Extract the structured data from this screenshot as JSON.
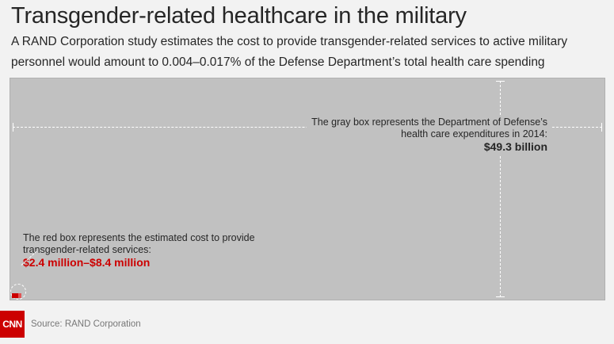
{
  "header": {
    "title": "Transgender-related healthcare in the military",
    "subtitle": "A RAND Corporation study estimates the cost to provide transgender-related services to active military personnel would amount to 0.004–0.017% of the Defense Department’s total health care spending"
  },
  "chart_data": {
    "type": "area-comparison",
    "title": "Transgender-related healthcare in the military",
    "boxes": [
      {
        "label": "The gray box represents the Department of Defense’s health care expenditures in 2014:",
        "value_text": "$49.3 billion",
        "value": 49300000000,
        "color": "#c1c1c1"
      },
      {
        "label": "The red box represents the estimated cost to provide transgender-related services:",
        "value_text_low": "$2.4 million",
        "value_text_sep": "–",
        "value_text_high": "$8.4 million",
        "value_low": 2400000,
        "value_high": 8400000,
        "color": "#cc0000"
      }
    ]
  },
  "footer": {
    "logo": "CNN",
    "source": "Source: RAND Corporation"
  },
  "colors": {
    "gray_box": "#c1c1c1",
    "red_box": "#cc0000",
    "logo_bg": "#cc0000"
  }
}
